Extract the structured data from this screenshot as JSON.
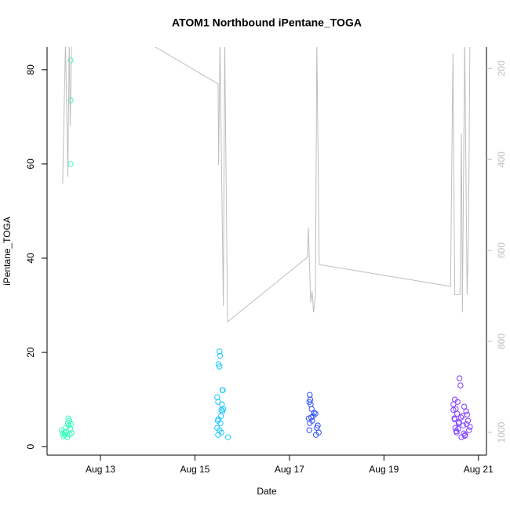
{
  "chart_data": {
    "type": "scatter",
    "title": "ATOM1 Northbound iPentane_TOGA",
    "xlabel": "Date",
    "ylabel": "iPentane_TOGA",
    "xlim": [
      11.87,
      21.17
    ],
    "xticks": [
      {
        "value": 13,
        "label": "Aug 13"
      },
      {
        "value": 15,
        "label": "Aug 15"
      },
      {
        "value": 17,
        "label": "Aug 17"
      },
      {
        "value": 19,
        "label": "Aug 19"
      },
      {
        "value": 21,
        "label": "Aug 21"
      }
    ],
    "ylim": [
      -1.8,
      84.8
    ],
    "yticks": [
      0,
      20,
      40,
      60,
      80
    ],
    "y2lim": [
      1050,
      153
    ],
    "y2ticks": [
      200,
      400,
      600,
      800,
      1000
    ],
    "series": [
      {
        "color": "#33ffb8",
        "x": [
          12.18,
          12.2,
          12.22,
          12.24,
          12.25,
          12.27,
          12.28,
          12.3,
          12.31,
          12.32,
          12.33,
          12.34,
          12.35,
          12.36,
          12.37,
          12.37,
          12.37,
          12.38,
          12.39
        ],
        "values": [
          3.5,
          2.8,
          2.2,
          3.0,
          2.5,
          4.0,
          3.2,
          2.0,
          5.0,
          6.0,
          4.5,
          5.5,
          2.6,
          3.8,
          82,
          73.5,
          60,
          4.8,
          2.9
        ]
      },
      {
        "color": "#1ac6ff",
        "x": [
          15.52,
          15.53,
          15.5,
          15.52,
          15.58,
          15.59,
          15.47,
          15.49,
          15.57,
          15.56,
          15.58,
          15.55,
          15.48,
          15.5,
          15.54,
          15.47,
          15.56,
          15.49,
          15.7,
          15.52,
          15.6
        ],
        "values": [
          20.2,
          19.3,
          17.5,
          17,
          12,
          12,
          10.5,
          9.5,
          9,
          7.8,
          7.5,
          6.5,
          5.5,
          5.8,
          5,
          4,
          3,
          2.5,
          2,
          3.5,
          8
        ]
      },
      {
        "color": "#3050f8",
        "x": [
          17.43,
          17.44,
          17.42,
          17.45,
          17.47,
          17.55,
          17.5,
          17.41,
          17.48,
          17.43,
          17.6,
          17.58,
          17.42,
          17.62,
          17.56,
          17.46,
          17.52
        ],
        "values": [
          11,
          10,
          9.5,
          9,
          8,
          7,
          6.5,
          6,
          5.5,
          5,
          4.5,
          4,
          3.5,
          3,
          2.5,
          6.2,
          7.2
        ]
      },
      {
        "color": "#8040ff",
        "x": [
          20.6,
          20.62,
          20.5,
          20.56,
          20.47,
          20.7,
          20.52,
          20.74,
          20.55,
          20.66,
          20.49,
          20.78,
          20.58,
          20.68,
          20.51,
          20.8,
          20.54,
          20.72,
          20.64,
          20.47,
          20.76,
          20.59,
          20.82,
          20.53,
          20.69,
          20.63,
          20.5,
          20.75,
          20.57,
          20.71
        ],
        "values": [
          14.5,
          13,
          10,
          9.5,
          9,
          8.5,
          8,
          7.5,
          7,
          6.5,
          6,
          5.5,
          5,
          4.5,
          4,
          3.5,
          3,
          2.5,
          2,
          7.8,
          6.8,
          5.2,
          4.2,
          3.3,
          2.8,
          6.2,
          5.8,
          4.8,
          3.8,
          2.3
        ]
      },
      {
        "type": "line",
        "color": "#bebebe",
        "axis": "y2",
        "x": [
          12.2,
          12.26,
          12.31,
          12.34,
          12.36,
          12.39,
          13.95,
          15.49,
          15.5,
          15.53,
          15.6,
          15.63,
          15.69,
          17.38,
          17.4,
          17.45,
          17.48,
          17.51,
          17.55,
          17.58,
          17.63,
          20.41,
          20.46,
          20.5,
          20.61,
          20.64,
          20.66,
          20.71,
          20.76,
          20.79,
          20.82
        ],
        "values": [
          453,
          140,
          438,
          140,
          326,
          140,
          140,
          234,
          412,
          140,
          722,
          140,
          757,
          615,
          550,
          714,
          690,
          736,
          700,
          140,
          631,
          679,
          167,
          697,
          697,
          343,
          736,
          140,
          697,
          567,
          140
        ]
      }
    ]
  }
}
